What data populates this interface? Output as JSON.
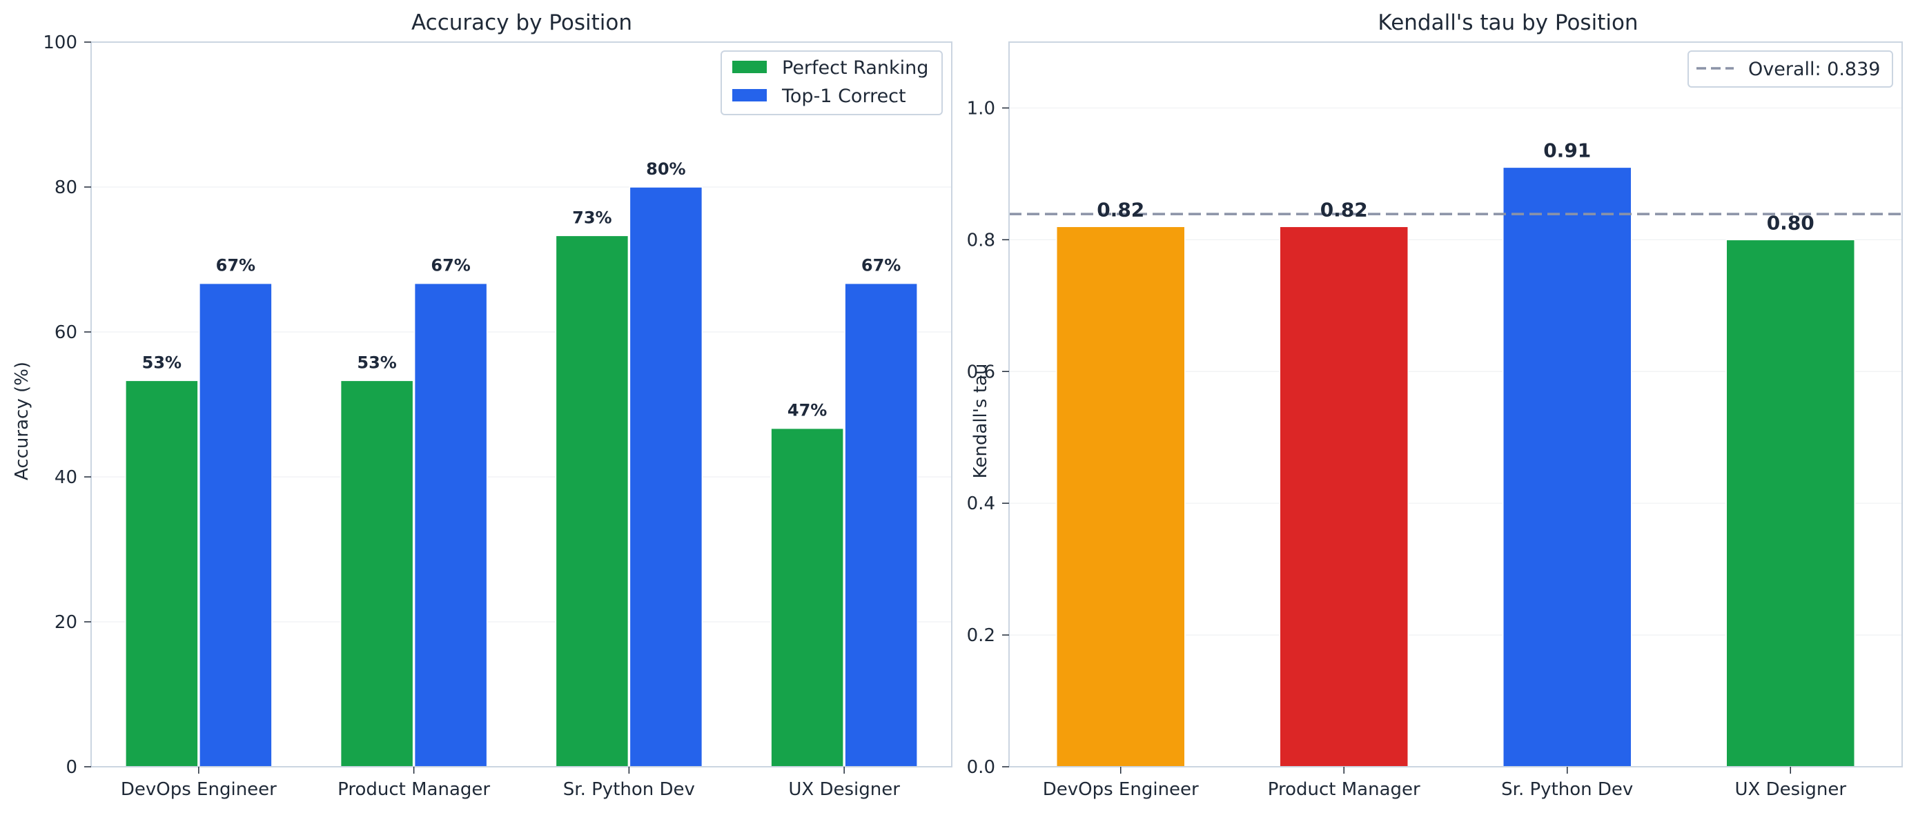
{
  "chart_data": [
    {
      "type": "bar",
      "title": "Accuracy by Position",
      "xlabel": "",
      "ylabel": "Accuracy (%)",
      "ylim": [
        0,
        100
      ],
      "yticks": [
        "0",
        "20",
        "40",
        "60",
        "80",
        "100"
      ],
      "categories": [
        "DevOps Engineer",
        "Product Manager",
        "Sr. Python Dev",
        "UX Designer"
      ],
      "series": [
        {
          "name": "Perfect Ranking",
          "color": "#16a34a",
          "values": [
            53.3,
            53.3,
            73.3,
            46.7
          ],
          "labels": [
            "53%",
            "53%",
            "73%",
            "47%"
          ]
        },
        {
          "name": "Top-1 Correct",
          "color": "#2563eb",
          "values": [
            66.7,
            66.7,
            80.0,
            66.7
          ],
          "labels": [
            "67%",
            "67%",
            "80%",
            "67%"
          ]
        }
      ],
      "legend": "top-right",
      "grid": true
    },
    {
      "type": "bar",
      "title": "Kendall's tau by Position",
      "xlabel": "",
      "ylabel": "Kendall's tau",
      "ylim": [
        0,
        1.1
      ],
      "yticks": [
        "0.0",
        "0.2",
        "0.4",
        "0.6",
        "0.8",
        "1.0"
      ],
      "categories": [
        "DevOps Engineer",
        "Product Manager",
        "Sr. Python Dev",
        "UX Designer"
      ],
      "values": [
        0.82,
        0.82,
        0.91,
        0.8
      ],
      "labels": [
        "0.82",
        "0.82",
        "0.91",
        "0.80"
      ],
      "colors": [
        "#f59e0b",
        "#dc2626",
        "#2563eb",
        "#16a34a"
      ],
      "reference_line": {
        "value": 0.839,
        "label": "Overall: 0.839",
        "color": "#8b93a7",
        "style": "dashed"
      },
      "legend": "top-right",
      "grid": true
    }
  ]
}
